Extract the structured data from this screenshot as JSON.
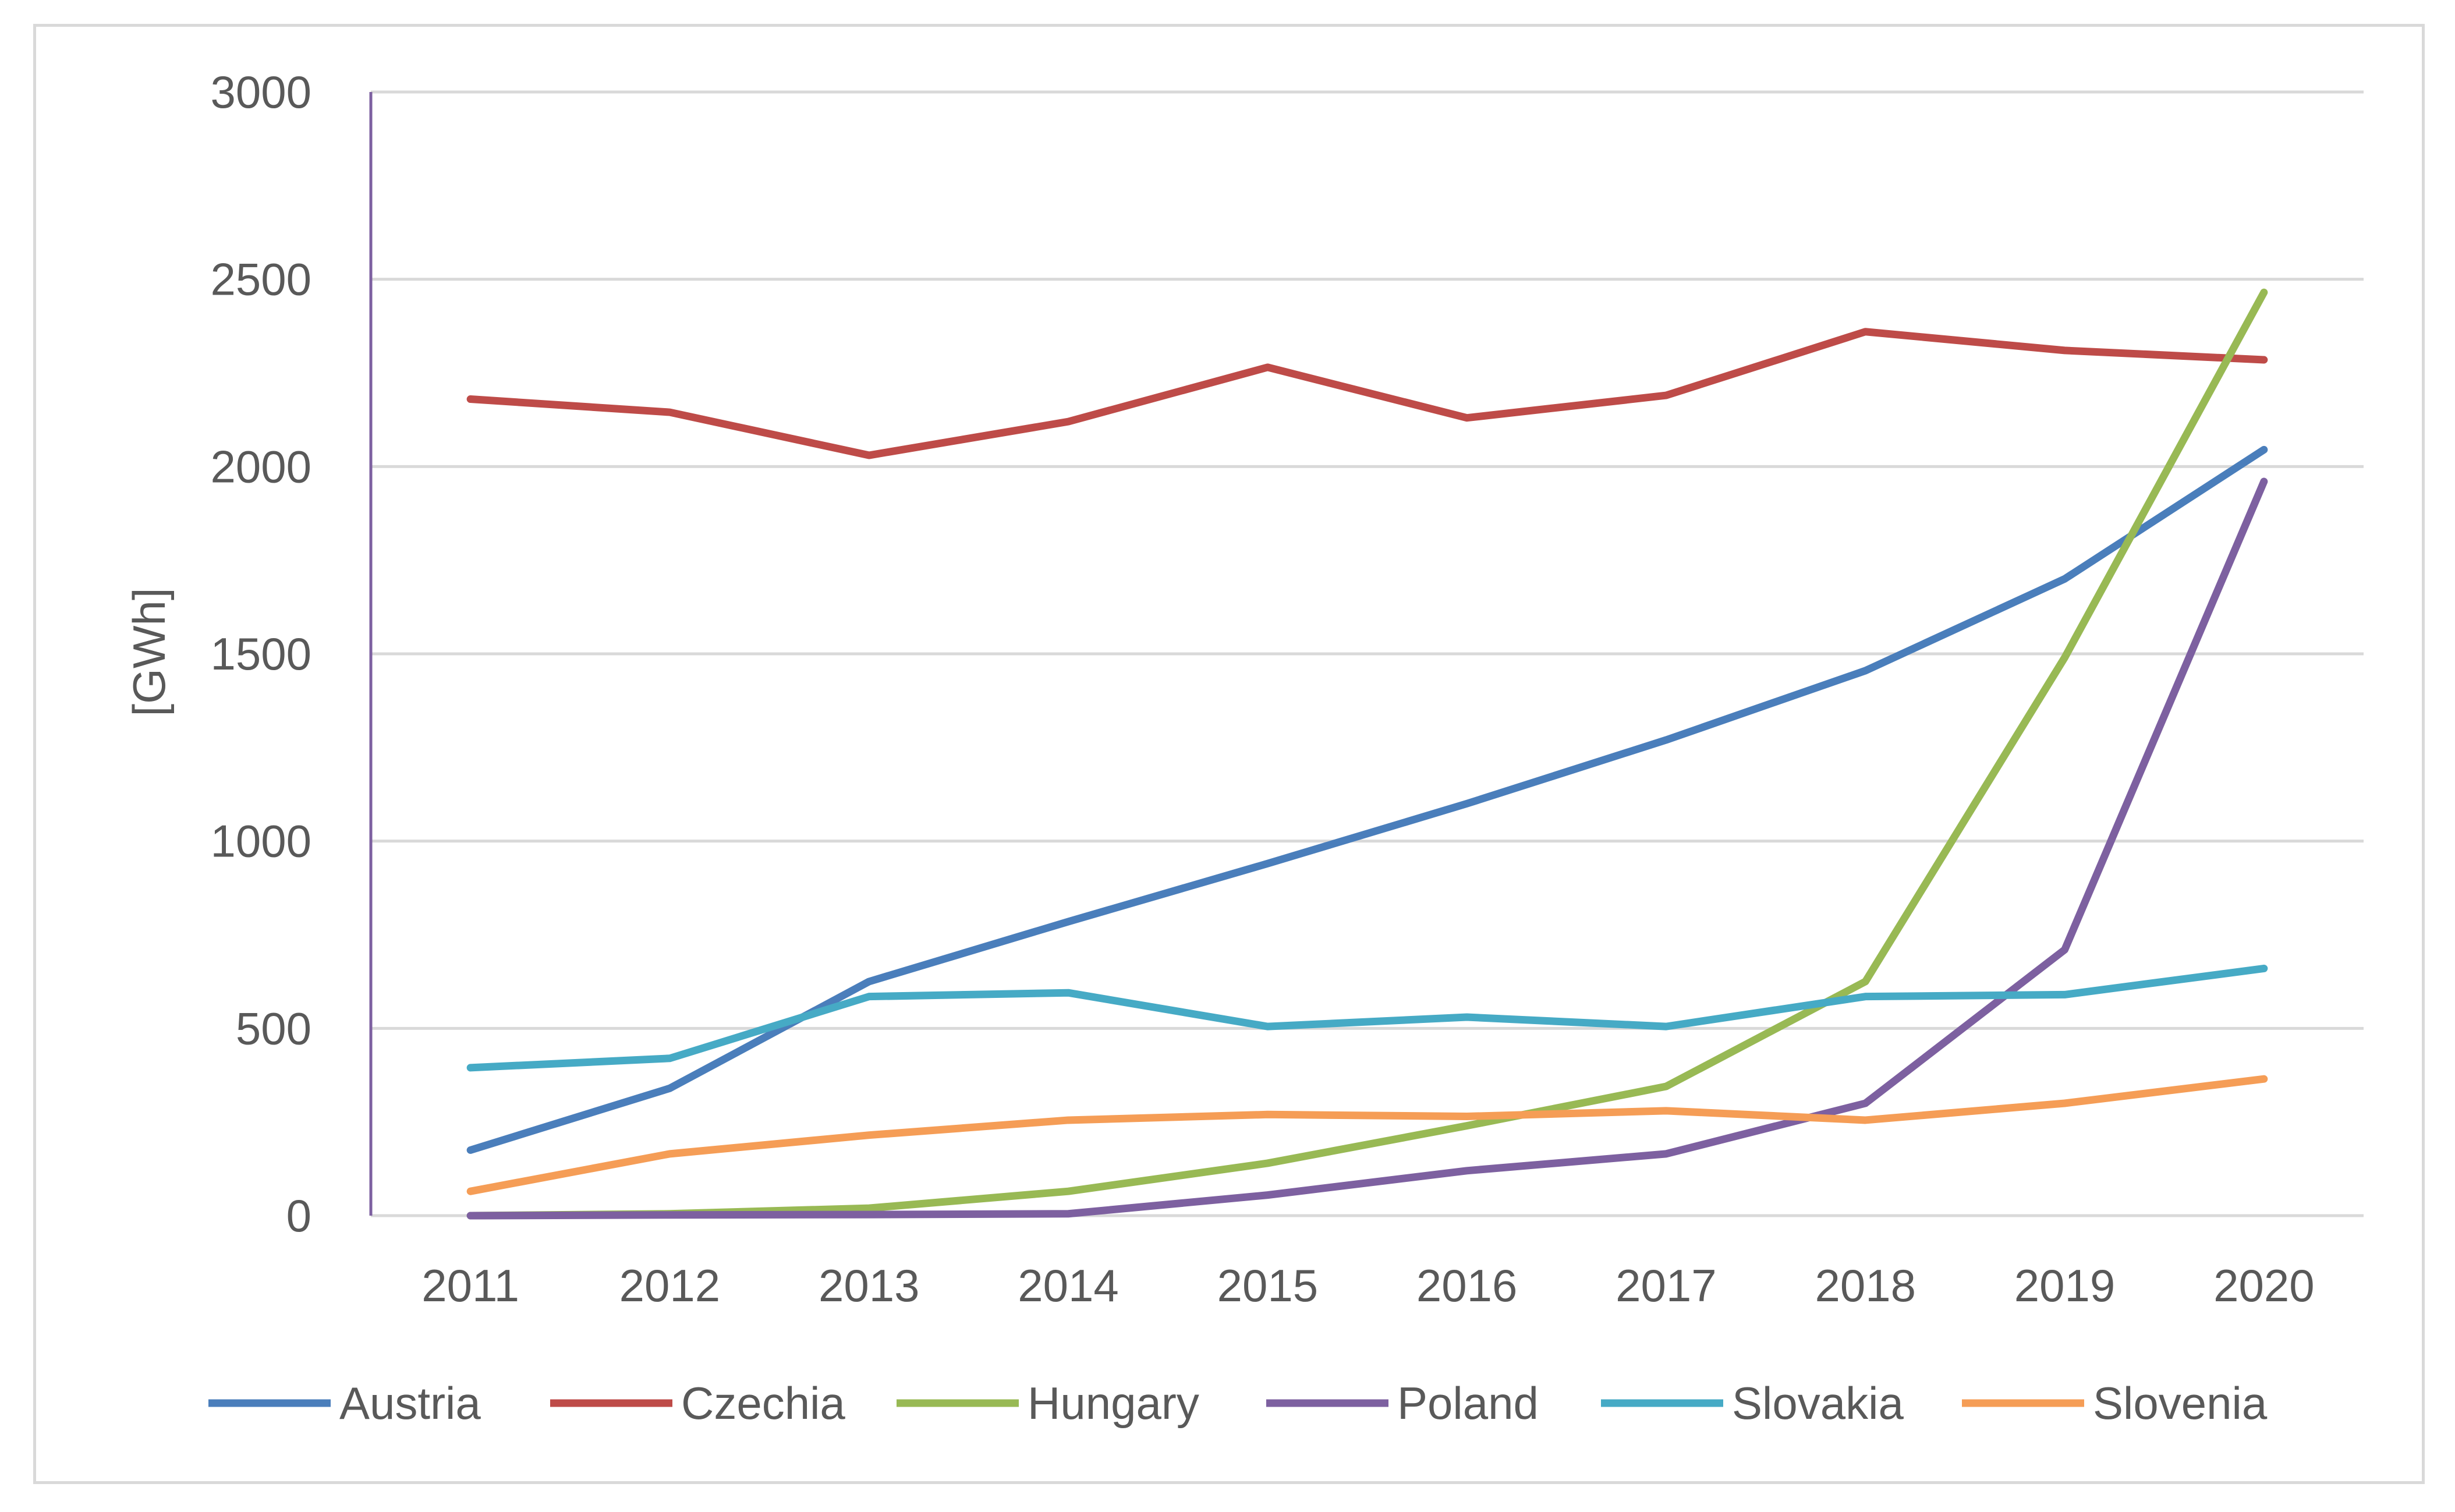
{
  "chart_data": {
    "type": "line",
    "title": "",
    "xlabel": "",
    "ylabel": "[GWh]",
    "ylim": [
      0,
      3000
    ],
    "yticks": [
      0,
      500,
      1000,
      1500,
      2000,
      2500,
      3000
    ],
    "grid": true,
    "legend_position": "bottom",
    "categories": [
      "2011",
      "2012",
      "2013",
      "2014",
      "2015",
      "2016",
      "2017",
      "2018",
      "2019",
      "2020"
    ],
    "series": [
      {
        "name": "Austria",
        "color": "#4a7ebb",
        "values": [
          175,
          340,
          625,
          785,
          940,
          1100,
          1270,
          1455,
          1700,
          2045
        ]
      },
      {
        "name": "Czechia",
        "color": "#be4b48",
        "values": [
          2180,
          2145,
          2030,
          2120,
          2265,
          2130,
          2190,
          2360,
          2310,
          2285
        ]
      },
      {
        "name": "Hungary",
        "color": "#98b954",
        "values": [
          0,
          5,
          20,
          65,
          140,
          240,
          345,
          625,
          1490,
          2465
        ]
      },
      {
        "name": "Poland",
        "color": "#7d60a0",
        "values": [
          0,
          2,
          3,
          5,
          55,
          120,
          165,
          300,
          710,
          1960
        ]
      },
      {
        "name": "Slovakia",
        "color": "#46aac5",
        "values": [
          395,
          420,
          585,
          595,
          505,
          530,
          505,
          585,
          590,
          660
        ]
      },
      {
        "name": "Slovenia",
        "color": "#f59d56",
        "values": [
          65,
          165,
          215,
          255,
          270,
          265,
          280,
          255,
          300,
          365
        ]
      }
    ]
  }
}
